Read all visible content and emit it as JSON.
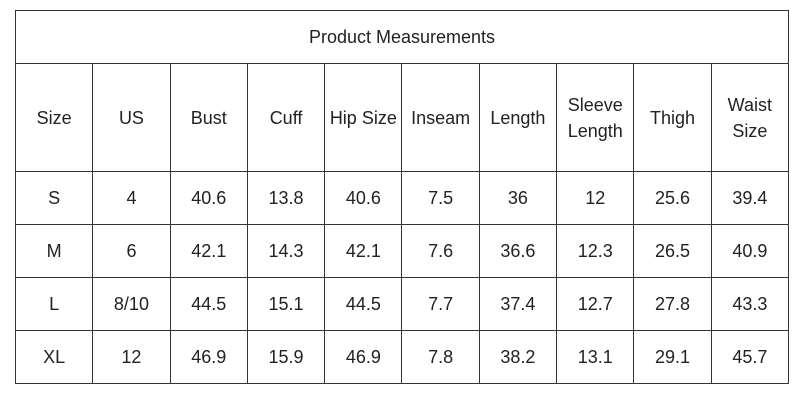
{
  "table": {
    "title": "Product Measurements",
    "headers": [
      "Size",
      "US",
      "Bust",
      "Cuff",
      "Hip Size",
      "Inseam",
      "Length",
      "Sleeve Length",
      "Thigh",
      "Waist Size"
    ],
    "rows": [
      [
        "S",
        "4",
        "40.6",
        "13.8",
        "40.6",
        "7.5",
        "36",
        "12",
        "25.6",
        "39.4"
      ],
      [
        "M",
        "6",
        "42.1",
        "14.3",
        "42.1",
        "7.6",
        "36.6",
        "12.3",
        "26.5",
        "40.9"
      ],
      [
        "L",
        "8/10",
        "44.5",
        "15.1",
        "44.5",
        "7.7",
        "37.4",
        "12.7",
        "27.8",
        "43.3"
      ],
      [
        "XL",
        "12",
        "46.9",
        "15.9",
        "46.9",
        "7.8",
        "38.2",
        "13.1",
        "29.1",
        "45.7"
      ]
    ]
  }
}
